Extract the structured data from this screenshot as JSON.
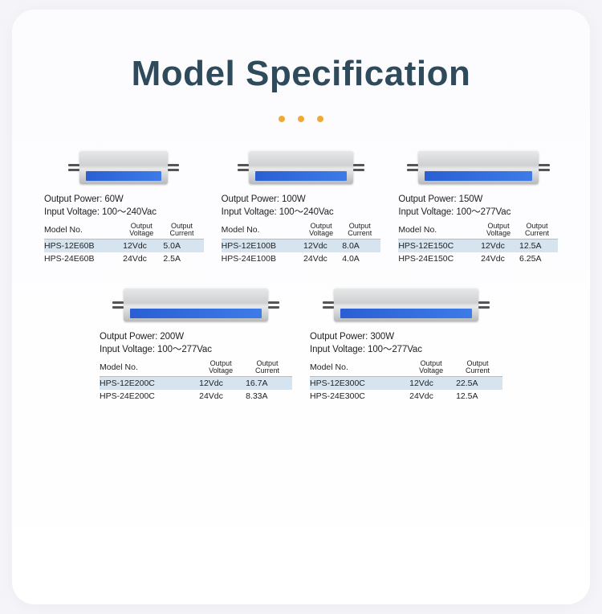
{
  "title": "Model Specification",
  "labels": {
    "output_power": "Output Power:",
    "input_voltage": "Input Voltage:",
    "model_no": "Model No.",
    "out_voltage": "Output\nVoltage",
    "out_current": "Output\nCurrent"
  },
  "psu_sizes": {
    "s": 110,
    "m": 130,
    "l": 150,
    "xl": 180
  },
  "products": [
    {
      "size": "s",
      "output_power": "60W",
      "input_voltage": "100～240Vac",
      "rows": [
        {
          "model": "HPS-12E60B",
          "v": "12Vdc",
          "a": "5.0A",
          "hl": true
        },
        {
          "model": "HPS-24E60B",
          "v": "24Vdc",
          "a": "2.5A",
          "hl": false
        }
      ]
    },
    {
      "size": "m",
      "output_power": "100W",
      "input_voltage": "100～240Vac",
      "rows": [
        {
          "model": "HPS-12E100B",
          "v": "12Vdc",
          "a": "8.0A",
          "hl": true
        },
        {
          "model": "HPS-24E100B",
          "v": "24Vdc",
          "a": "4.0A",
          "hl": false
        }
      ]
    },
    {
      "size": "l",
      "output_power": "150W",
      "input_voltage": "100～277Vac",
      "rows": [
        {
          "model": "HPS-12E150C",
          "v": "12Vdc",
          "a": "12.5A",
          "hl": true
        },
        {
          "model": "HPS-24E150C",
          "v": "24Vdc",
          "a": "6.25A",
          "hl": false
        }
      ]
    },
    {
      "size": "xl",
      "output_power": "200W",
      "input_voltage": "100～277Vac",
      "rows": [
        {
          "model": "HPS-12E200C",
          "v": "12Vdc",
          "a": "16.7A",
          "hl": true
        },
        {
          "model": "HPS-24E200C",
          "v": "24Vdc",
          "a": "8.33A",
          "hl": false
        }
      ]
    },
    {
      "size": "xl",
      "output_power": "300W",
      "input_voltage": "100～277Vac",
      "rows": [
        {
          "model": "HPS-12E300C",
          "v": "12Vdc",
          "a": "22.5A",
          "hl": true
        },
        {
          "model": "HPS-24E300C",
          "v": "24Vdc",
          "a": "12.5A",
          "hl": false
        }
      ]
    }
  ]
}
